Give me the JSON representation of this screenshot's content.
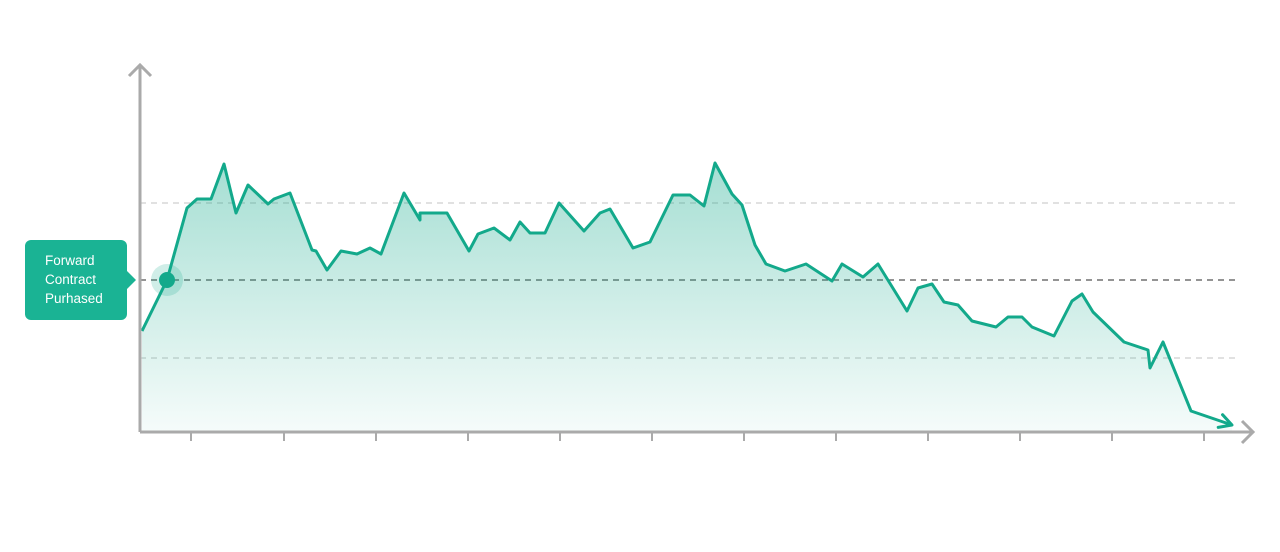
{
  "chart_data": {
    "type": "line",
    "x": [
      2,
      27,
      47,
      57,
      71,
      84,
      96,
      108,
      128,
      134,
      150,
      172,
      176,
      187,
      201,
      217,
      230,
      241,
      264,
      280,
      280,
      307,
      329,
      338,
      354,
      370,
      380,
      390,
      405,
      419,
      444,
      460,
      470,
      493,
      510,
      533,
      550,
      564,
      575,
      592,
      602,
      615,
      626,
      645,
      666,
      692,
      702,
      723,
      738,
      767,
      778,
      792,
      804,
      818,
      832,
      856,
      868,
      882,
      892,
      914,
      932,
      942,
      953,
      984,
      1008,
      1010,
      1023,
      1051,
      1092
    ],
    "series": [
      {
        "color": "#13a98b",
        "values": [
          101,
          152,
          224,
          233,
          233,
          268,
          219,
          247,
          228,
          233,
          239,
          182,
          181,
          162,
          181,
          178,
          184,
          178,
          239,
          212,
          219,
          219,
          181,
          198,
          204,
          192,
          210,
          199,
          199,
          229,
          201,
          219,
          223,
          184,
          190,
          237,
          237,
          226,
          269,
          238,
          227,
          187,
          168,
          161,
          168,
          151,
          168,
          155,
          168,
          121,
          144,
          148,
          130,
          127,
          111,
          105,
          115,
          115,
          105,
          96,
          131,
          138,
          120,
          90,
          82,
          64,
          90,
          21,
          7
        ]
      }
    ],
    "xlim": [
      0,
      1110
    ],
    "ylim": [
      0,
      367
    ],
    "reference_lines": [
      {
        "value": 229,
        "color": "#cfcfcf"
      },
      {
        "value": 152,
        "color": "#555"
      },
      {
        "value": 74,
        "color": "#cfcfcf"
      }
    ],
    "annotation": {
      "text": "Forward Contract Purhased",
      "x": 27,
      "y": 152
    }
  }
}
